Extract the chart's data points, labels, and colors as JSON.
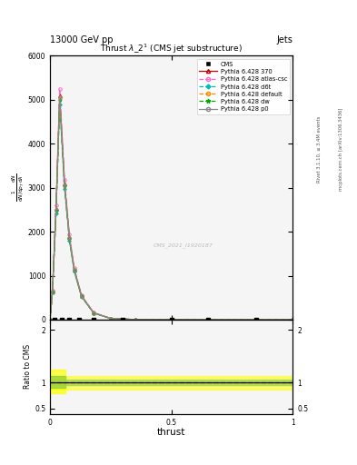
{
  "title": "Thrust $\\lambda\\_2^1$ (CMS jet substructure)",
  "top_label": "13000 GeV pp",
  "top_right_label": "Jets",
  "right_label1": "Rivet 3.1.10, ≥ 3.4M events",
  "right_label2": "mcplots.cern.ch [arXiv:1306.3436]",
  "cms_watermark": "CMS_2021_I1920187",
  "xlabel": "thrust",
  "ylabel_parts": [
    "1",
    "mathrm{d}N / mathrm{d}p_T",
    "mathrm{d}N",
    "mathrm{d}lambda"
  ],
  "ratio_ylabel": "Ratio to CMS",
  "color_cms": "#000000",
  "color_370": "#cc0000",
  "color_atlas_csc": "#ff66cc",
  "color_d6t": "#00bbbb",
  "color_default": "#ff8800",
  "color_dw": "#00aa00",
  "color_p0": "#888888",
  "ylim_main": [
    0,
    6000
  ],
  "ylim_ratio": [
    0.4,
    2.2
  ],
  "yticks_main": [
    0,
    1000,
    2000,
    3000,
    4000,
    5000,
    6000
  ],
  "ytick_labels_main": [
    "0",
    "1000",
    "2000",
    "3000",
    "4000",
    "5000",
    "6000"
  ],
  "xticks": [
    0,
    0.5,
    1.0
  ],
  "xtick_labels": [
    "0",
    "0.5",
    "1"
  ],
  "yticks_ratio": [
    0.5,
    1.0,
    2.0
  ],
  "bg_color": "#f5f5f5"
}
